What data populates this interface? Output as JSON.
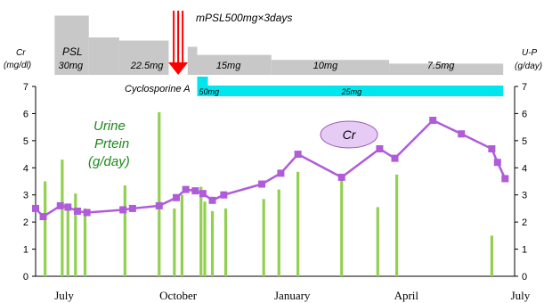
{
  "chart_data": {
    "type": "bar+line",
    "x_range_months": [
      0,
      12.6
    ],
    "x_tick_labels": [
      {
        "label": "July",
        "m": 1.0
      },
      {
        "label": "October",
        "m": 4.0
      },
      {
        "label": "January",
        "m": 7.0
      },
      {
        "label": "April",
        "m": 10.0
      },
      {
        "label": "July",
        "m": 13.0
      }
    ],
    "y_left": {
      "label": "Cr",
      "unit": "(mg/dl)",
      "ticks": [
        "0",
        "1",
        "2",
        "3",
        "4",
        "5",
        "6",
        "7"
      ],
      "range": [
        0,
        7
      ]
    },
    "y_right": {
      "label": "U-P",
      "unit": "(g/day)",
      "ticks": [
        "0",
        "1",
        "2",
        "3",
        "4",
        "5",
        "6",
        "7"
      ],
      "range": [
        0,
        7
      ]
    },
    "bar_series": {
      "name": "Urine Prtein (g/day)",
      "label_lines": [
        "Urine",
        "Prtein",
        "(g/day)"
      ],
      "color": "#92d050",
      "points": [
        {
          "m": 0.25,
          "v": 3.5
        },
        {
          "m": 0.7,
          "v": 4.3
        },
        {
          "m": 0.85,
          "v": 2.5
        },
        {
          "m": 1.05,
          "v": 3.05
        },
        {
          "m": 1.3,
          "v": 2.5
        },
        {
          "m": 2.35,
          "v": 3.35
        },
        {
          "m": 3.25,
          "v": 6.05
        },
        {
          "m": 3.65,
          "v": 2.5
        },
        {
          "m": 3.85,
          "v": 3.0
        },
        {
          "m": 4.35,
          "v": 3.3
        },
        {
          "m": 4.45,
          "v": 2.75
        },
        {
          "m": 4.65,
          "v": 2.4
        },
        {
          "m": 5.0,
          "v": 2.5
        },
        {
          "m": 6.0,
          "v": 2.85
        },
        {
          "m": 6.4,
          "v": 3.2
        },
        {
          "m": 6.9,
          "v": 3.85
        },
        {
          "m": 8.05,
          "v": 3.55
        },
        {
          "m": 9.0,
          "v": 2.55
        },
        {
          "m": 9.5,
          "v": 3.75
        },
        {
          "m": 12.0,
          "v": 1.5
        }
      ]
    },
    "line_series": {
      "name": "Cr",
      "color": "#b05cd9",
      "points": [
        {
          "m": 0.0,
          "v": 2.5
        },
        {
          "m": 0.2,
          "v": 2.2
        },
        {
          "m": 0.65,
          "v": 2.6
        },
        {
          "m": 0.85,
          "v": 2.55
        },
        {
          "m": 1.1,
          "v": 2.4
        },
        {
          "m": 1.35,
          "v": 2.35
        },
        {
          "m": 2.3,
          "v": 2.45
        },
        {
          "m": 2.55,
          "v": 2.5
        },
        {
          "m": 3.25,
          "v": 2.6
        },
        {
          "m": 3.7,
          "v": 2.9
        },
        {
          "m": 3.95,
          "v": 3.2
        },
        {
          "m": 4.2,
          "v": 3.15
        },
        {
          "m": 4.4,
          "v": 3.05
        },
        {
          "m": 4.65,
          "v": 2.8
        },
        {
          "m": 4.95,
          "v": 3.0
        },
        {
          "m": 5.95,
          "v": 3.4
        },
        {
          "m": 6.45,
          "v": 3.8
        },
        {
          "m": 6.9,
          "v": 4.5
        },
        {
          "m": 8.05,
          "v": 3.65
        },
        {
          "m": 9.05,
          "v": 4.7
        },
        {
          "m": 9.45,
          "v": 4.35
        },
        {
          "m": 10.45,
          "v": 5.75
        },
        {
          "m": 11.2,
          "v": 5.25
        },
        {
          "m": 12.0,
          "v": 4.7
        },
        {
          "m": 12.15,
          "v": 4.2
        },
        {
          "m": 12.35,
          "v": 3.6
        }
      ]
    },
    "cr_bubble_label": "Cr",
    "psl": {
      "label": "PSL",
      "steps": [
        {
          "m0": 0.5,
          "m1": 1.4,
          "level": 0.95
        },
        {
          "m0": 1.4,
          "m1": 2.2,
          "level": 0.6
        },
        {
          "m0": 2.2,
          "m1": 3.5,
          "level": 0.55
        },
        {
          "m0": 4.0,
          "m1": 4.25,
          "level": 0.45
        },
        {
          "m0": 4.25,
          "m1": 6.2,
          "level": 0.32
        },
        {
          "m0": 6.2,
          "m1": 9.3,
          "level": 0.24
        },
        {
          "m0": 9.3,
          "m1": 12.3,
          "level": 0.18
        }
      ],
      "dose_labels": [
        {
          "text": "30mg",
          "m": 0.6
        },
        {
          "text": "22.5mg",
          "m": 2.5
        },
        {
          "text": "15mg",
          "m": 4.75
        },
        {
          "text": "10mg",
          "m": 7.3
        },
        {
          "text": "7.5mg",
          "m": 10.3
        }
      ]
    },
    "pulse": {
      "label": "mPSL500mg×3days",
      "m": 3.75,
      "color": "#ff0000"
    },
    "cyclosporine": {
      "label": "Cyclosporine A",
      "color": "#00e5ee",
      "start_m": 4.25,
      "end_m": 12.3,
      "dose_labels": [
        {
          "text": "50mg",
          "m": 4.25
        },
        {
          "text": "25mg",
          "m": 8.0
        }
      ]
    },
    "title": "",
    "grid": false
  }
}
